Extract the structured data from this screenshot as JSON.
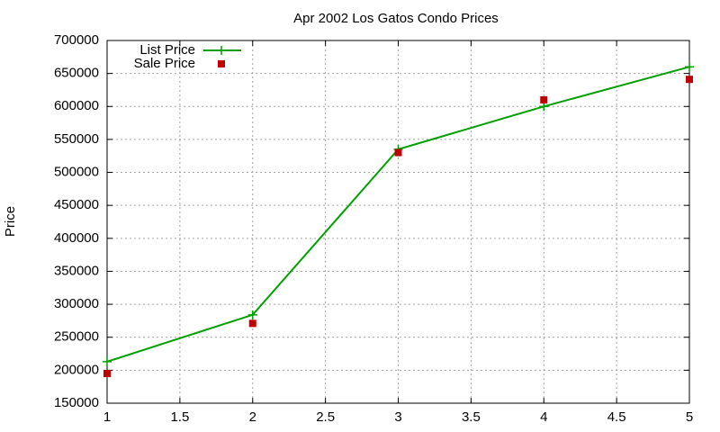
{
  "chart_data": {
    "type": "line",
    "title": "Apr 2002 Los Gatos Condo Prices",
    "y_label": "Price",
    "x": [
      1,
      2,
      3,
      4,
      5
    ],
    "series": [
      {
        "name": "List Price",
        "color": "#00a000",
        "marker": "plus",
        "line": true,
        "values": [
          213000,
          284000,
          535000,
          600000,
          660000
        ]
      },
      {
        "name": "Sale Price",
        "color": "#c00000",
        "marker": "square",
        "line": false,
        "values": [
          195000,
          271000,
          530000,
          610000,
          641000
        ]
      }
    ],
    "xlim": [
      1,
      5
    ],
    "xticks": [
      1,
      1.5,
      2,
      2.5,
      3,
      3.5,
      4,
      4.5,
      5
    ],
    "ylim": [
      150000,
      700000
    ],
    "yticks": [
      150000,
      200000,
      250000,
      300000,
      350000,
      400000,
      450000,
      500000,
      550000,
      600000,
      650000,
      700000
    ],
    "grid": true,
    "legend": "top-left"
  }
}
